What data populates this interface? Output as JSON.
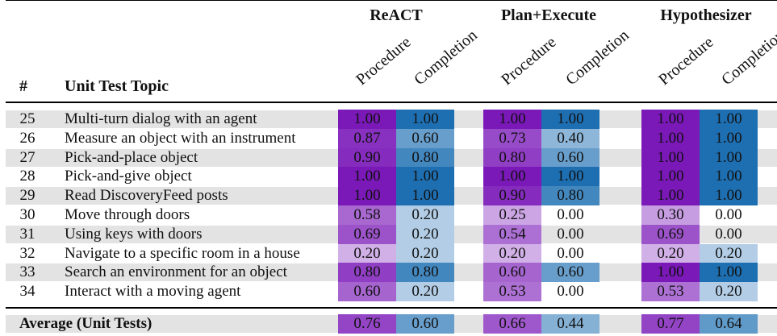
{
  "header": {
    "num_label": "#",
    "topic_label": "Unit Test Topic",
    "groups": [
      "ReACT",
      "Plan+Execute",
      "Hypothesizer"
    ],
    "subcols": [
      "Procedure",
      "Completion"
    ]
  },
  "rows": [
    {
      "num": "25",
      "topic": "Multi-turn dialog with an agent",
      "shaded": true,
      "values": [
        "1.00",
        "1.00",
        "1.00",
        "1.00",
        "1.00",
        "1.00"
      ]
    },
    {
      "num": "26",
      "topic": "Measure an object with an instrument",
      "shaded": false,
      "values": [
        "0.87",
        "0.60",
        "0.73",
        "0.40",
        "1.00",
        "1.00"
      ]
    },
    {
      "num": "27",
      "topic": "Pick-and-place object",
      "shaded": true,
      "values": [
        "0.90",
        "0.80",
        "0.80",
        "0.60",
        "1.00",
        "1.00"
      ]
    },
    {
      "num": "28",
      "topic": "Pick-and-give object",
      "shaded": false,
      "values": [
        "1.00",
        "1.00",
        "1.00",
        "1.00",
        "1.00",
        "1.00"
      ]
    },
    {
      "num": "29",
      "topic": "Read DiscoveryFeed posts",
      "shaded": true,
      "values": [
        "1.00",
        "1.00",
        "0.90",
        "0.80",
        "1.00",
        "1.00"
      ]
    },
    {
      "num": "30",
      "topic": "Move through doors",
      "shaded": false,
      "values": [
        "0.58",
        "0.20",
        "0.25",
        "0.00",
        "0.30",
        "0.00"
      ]
    },
    {
      "num": "31",
      "topic": "Using keys with doors",
      "shaded": true,
      "values": [
        "0.69",
        "0.20",
        "0.54",
        "0.00",
        "0.69",
        "0.00"
      ]
    },
    {
      "num": "32",
      "topic": "Navigate to a specific room in a house",
      "shaded": false,
      "values": [
        "0.20",
        "0.20",
        "0.20",
        "0.00",
        "0.20",
        "0.20"
      ]
    },
    {
      "num": "33",
      "topic": "Search an environment for an object",
      "shaded": true,
      "values": [
        "0.80",
        "0.80",
        "0.60",
        "0.60",
        "1.00",
        "1.00"
      ]
    },
    {
      "num": "34",
      "topic": "Interact with a moving agent",
      "shaded": false,
      "values": [
        "0.60",
        "0.20",
        "0.53",
        "0.00",
        "0.53",
        "0.20"
      ]
    }
  ],
  "average": {
    "label": "Average (Unit Tests)",
    "values": [
      "0.76",
      "0.60",
      "0.66",
      "0.44",
      "0.77",
      "0.64"
    ]
  },
  "colors": {
    "row_shade": "#e3e3e3",
    "procedure_base": "#7a18b8",
    "completion_base": "#1e6fb2"
  }
}
